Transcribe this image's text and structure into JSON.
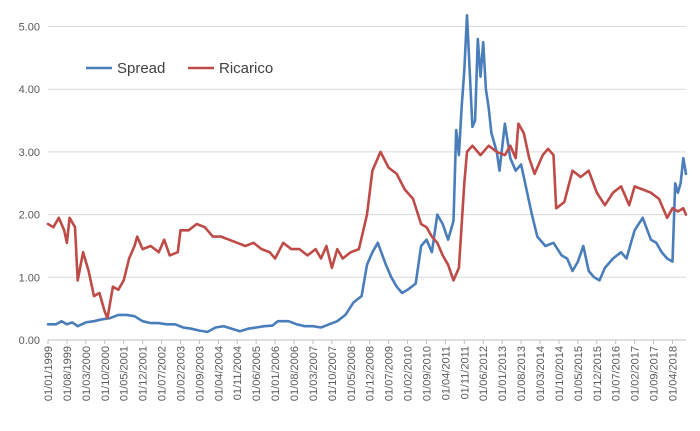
{
  "chart_data": {
    "type": "line",
    "title": "",
    "xlabel": "",
    "ylabel": "",
    "ylim": [
      0,
      5.2
    ],
    "yticks": [
      "0.00",
      "1.00",
      "2.00",
      "3.00",
      "4.00",
      "5.00"
    ],
    "grid": "horizontal",
    "legend_position": "top-left",
    "x_tick_labels": [
      "01/01/1999",
      "01/08/1999",
      "01/03/2000",
      "01/10/2000",
      "01/05/2001",
      "01/12/2001",
      "01/07/2002",
      "01/02/2003",
      "01/09/2003",
      "01/04/2004",
      "01/11/2004",
      "01/06/2005",
      "01/01/2006",
      "01/08/2006",
      "01/03/2007",
      "01/10/2007",
      "01/05/2008",
      "01/12/2008",
      "01/07/2009",
      "01/02/2010",
      "01/09/2010",
      "01/04/2011",
      "01/11/2011",
      "01/06/2012",
      "01/01/2013",
      "01/08/2013",
      "01/03/2014",
      "01/10/2014",
      "01/05/2015",
      "01/12/2015",
      "01/07/2016",
      "01/02/2017",
      "01/09/2017",
      "01/04/2018"
    ],
    "x_months": {
      "start": "1999-01",
      "end": "2018-09"
    },
    "series": [
      {
        "name": "Spread",
        "color": "#4a7ebb",
        "points": [
          [
            "1999-01",
            0.25
          ],
          [
            "1999-04",
            0.25
          ],
          [
            "1999-06",
            0.3
          ],
          [
            "1999-08",
            0.25
          ],
          [
            "1999-10",
            0.28
          ],
          [
            "1999-12",
            0.22
          ],
          [
            "2000-03",
            0.28
          ],
          [
            "2000-06",
            0.3
          ],
          [
            "2000-09",
            0.33
          ],
          [
            "2000-12",
            0.35
          ],
          [
            "2001-03",
            0.4
          ],
          [
            "2001-06",
            0.4
          ],
          [
            "2001-09",
            0.38
          ],
          [
            "2001-12",
            0.3
          ],
          [
            "2002-03",
            0.27
          ],
          [
            "2002-06",
            0.27
          ],
          [
            "2002-09",
            0.25
          ],
          [
            "2002-12",
            0.25
          ],
          [
            "2003-03",
            0.2
          ],
          [
            "2003-06",
            0.18
          ],
          [
            "2003-09",
            0.15
          ],
          [
            "2003-12",
            0.13
          ],
          [
            "2004-03",
            0.2
          ],
          [
            "2004-06",
            0.22
          ],
          [
            "2004-09",
            0.18
          ],
          [
            "2004-12",
            0.14
          ],
          [
            "2005-03",
            0.18
          ],
          [
            "2005-06",
            0.2
          ],
          [
            "2005-09",
            0.22
          ],
          [
            "2005-12",
            0.23
          ],
          [
            "2006-02",
            0.3
          ],
          [
            "2006-06",
            0.3
          ],
          [
            "2006-09",
            0.25
          ],
          [
            "2006-12",
            0.22
          ],
          [
            "2007-03",
            0.22
          ],
          [
            "2007-06",
            0.2
          ],
          [
            "2007-09",
            0.25
          ],
          [
            "2007-12",
            0.3
          ],
          [
            "2008-03",
            0.4
          ],
          [
            "2008-06",
            0.6
          ],
          [
            "2008-09",
            0.7
          ],
          [
            "2008-11",
            1.2
          ],
          [
            "2009-01",
            1.4
          ],
          [
            "2009-03",
            1.55
          ],
          [
            "2009-06",
            1.2
          ],
          [
            "2009-08",
            1.0
          ],
          [
            "2009-10",
            0.85
          ],
          [
            "2009-12",
            0.75
          ],
          [
            "2010-02",
            0.8
          ],
          [
            "2010-05",
            0.9
          ],
          [
            "2010-07",
            1.5
          ],
          [
            "2010-09",
            1.6
          ],
          [
            "2010-11",
            1.4
          ],
          [
            "2011-01",
            2.0
          ],
          [
            "2011-03",
            1.85
          ],
          [
            "2011-05",
            1.6
          ],
          [
            "2011-07",
            1.9
          ],
          [
            "2011-08",
            3.35
          ],
          [
            "2011-09",
            2.95
          ],
          [
            "2011-10",
            3.7
          ],
          [
            "2011-11",
            4.3
          ],
          [
            "2011-12",
            5.18
          ],
          [
            "2012-02",
            3.4
          ],
          [
            "2012-03",
            3.5
          ],
          [
            "2012-04",
            4.8
          ],
          [
            "2012-05",
            4.2
          ],
          [
            "2012-06",
            4.75
          ],
          [
            "2012-07",
            4.0
          ],
          [
            "2012-08",
            3.7
          ],
          [
            "2012-09",
            3.3
          ],
          [
            "2012-11",
            3.0
          ],
          [
            "2012-12",
            2.7
          ],
          [
            "2013-02",
            3.45
          ],
          [
            "2013-04",
            2.9
          ],
          [
            "2013-06",
            2.7
          ],
          [
            "2013-08",
            2.8
          ],
          [
            "2013-10",
            2.4
          ],
          [
            "2013-12",
            2.0
          ],
          [
            "2014-02",
            1.65
          ],
          [
            "2014-05",
            1.5
          ],
          [
            "2014-08",
            1.55
          ],
          [
            "2014-11",
            1.35
          ],
          [
            "2015-01",
            1.3
          ],
          [
            "2015-03",
            1.1
          ],
          [
            "2015-05",
            1.25
          ],
          [
            "2015-07",
            1.5
          ],
          [
            "2015-09",
            1.1
          ],
          [
            "2015-11",
            1.0
          ],
          [
            "2016-01",
            0.95
          ],
          [
            "2016-03",
            1.15
          ],
          [
            "2016-06",
            1.3
          ],
          [
            "2016-09",
            1.4
          ],
          [
            "2016-11",
            1.3
          ],
          [
            "2017-02",
            1.75
          ],
          [
            "2017-05",
            1.95
          ],
          [
            "2017-08",
            1.6
          ],
          [
            "2017-10",
            1.55
          ],
          [
            "2017-12",
            1.4
          ],
          [
            "2018-02",
            1.3
          ],
          [
            "2018-04",
            1.25
          ],
          [
            "2018-05",
            2.5
          ],
          [
            "2018-06",
            2.35
          ],
          [
            "2018-07",
            2.5
          ],
          [
            "2018-08",
            2.9
          ],
          [
            "2018-09",
            2.65
          ]
        ]
      },
      {
        "name": "Ricarico",
        "color": "#be4b48",
        "points": [
          [
            "1999-01",
            1.85
          ],
          [
            "1999-03",
            1.8
          ],
          [
            "1999-05",
            1.95
          ],
          [
            "1999-07",
            1.75
          ],
          [
            "1999-08",
            1.55
          ],
          [
            "1999-09",
            1.95
          ],
          [
            "1999-11",
            1.8
          ],
          [
            "1999-12",
            0.95
          ],
          [
            "2000-02",
            1.4
          ],
          [
            "2000-04",
            1.1
          ],
          [
            "2000-06",
            0.7
          ],
          [
            "2000-08",
            0.75
          ],
          [
            "2000-10",
            0.45
          ],
          [
            "2000-11",
            0.35
          ],
          [
            "2001-01",
            0.85
          ],
          [
            "2001-03",
            0.8
          ],
          [
            "2001-05",
            0.95
          ],
          [
            "2001-07",
            1.3
          ],
          [
            "2001-09",
            1.5
          ],
          [
            "2001-10",
            1.65
          ],
          [
            "2001-12",
            1.45
          ],
          [
            "2002-03",
            1.5
          ],
          [
            "2002-06",
            1.4
          ],
          [
            "2002-08",
            1.6
          ],
          [
            "2002-10",
            1.35
          ],
          [
            "2003-01",
            1.4
          ],
          [
            "2003-02",
            1.75
          ],
          [
            "2003-05",
            1.75
          ],
          [
            "2003-08",
            1.85
          ],
          [
            "2003-11",
            1.8
          ],
          [
            "2004-02",
            1.65
          ],
          [
            "2004-05",
            1.65
          ],
          [
            "2004-08",
            1.6
          ],
          [
            "2004-11",
            1.55
          ],
          [
            "2005-02",
            1.5
          ],
          [
            "2005-05",
            1.55
          ],
          [
            "2005-08",
            1.45
          ],
          [
            "2005-11",
            1.4
          ],
          [
            "2006-01",
            1.3
          ],
          [
            "2006-04",
            1.55
          ],
          [
            "2006-07",
            1.45
          ],
          [
            "2006-10",
            1.45
          ],
          [
            "2007-01",
            1.35
          ],
          [
            "2007-04",
            1.45
          ],
          [
            "2007-06",
            1.3
          ],
          [
            "2007-08",
            1.5
          ],
          [
            "2007-10",
            1.15
          ],
          [
            "2007-12",
            1.45
          ],
          [
            "2008-02",
            1.3
          ],
          [
            "2008-05",
            1.4
          ],
          [
            "2008-08",
            1.45
          ],
          [
            "2008-11",
            2.0
          ],
          [
            "2009-01",
            2.7
          ],
          [
            "2009-04",
            3.0
          ],
          [
            "2009-07",
            2.75
          ],
          [
            "2009-10",
            2.65
          ],
          [
            "2010-01",
            2.4
          ],
          [
            "2010-04",
            2.25
          ],
          [
            "2010-07",
            1.85
          ],
          [
            "2010-09",
            1.8
          ],
          [
            "2010-11",
            1.65
          ],
          [
            "2011-01",
            1.55
          ],
          [
            "2011-03",
            1.35
          ],
          [
            "2011-05",
            1.2
          ],
          [
            "2011-07",
            0.95
          ],
          [
            "2011-09",
            1.15
          ],
          [
            "2011-11",
            2.5
          ],
          [
            "2011-12",
            3.0
          ],
          [
            "2012-02",
            3.1
          ],
          [
            "2012-05",
            2.95
          ],
          [
            "2012-08",
            3.1
          ],
          [
            "2012-11",
            3.0
          ],
          [
            "2013-02",
            2.95
          ],
          [
            "2013-04",
            3.1
          ],
          [
            "2013-06",
            2.9
          ],
          [
            "2013-07",
            3.45
          ],
          [
            "2013-09",
            3.3
          ],
          [
            "2013-11",
            2.9
          ],
          [
            "2014-01",
            2.65
          ],
          [
            "2014-04",
            2.95
          ],
          [
            "2014-06",
            3.05
          ],
          [
            "2014-08",
            2.95
          ],
          [
            "2014-09",
            2.1
          ],
          [
            "2014-12",
            2.2
          ],
          [
            "2015-03",
            2.7
          ],
          [
            "2015-06",
            2.6
          ],
          [
            "2015-09",
            2.7
          ],
          [
            "2015-12",
            2.35
          ],
          [
            "2016-03",
            2.15
          ],
          [
            "2016-06",
            2.35
          ],
          [
            "2016-09",
            2.45
          ],
          [
            "2016-12",
            2.15
          ],
          [
            "2017-02",
            2.45
          ],
          [
            "2017-05",
            2.4
          ],
          [
            "2017-08",
            2.35
          ],
          [
            "2017-11",
            2.25
          ],
          [
            "2018-02",
            1.95
          ],
          [
            "2018-04",
            2.1
          ],
          [
            "2018-06",
            2.05
          ],
          [
            "2018-08",
            2.1
          ],
          [
            "2018-09",
            2.0
          ]
        ]
      }
    ]
  }
}
